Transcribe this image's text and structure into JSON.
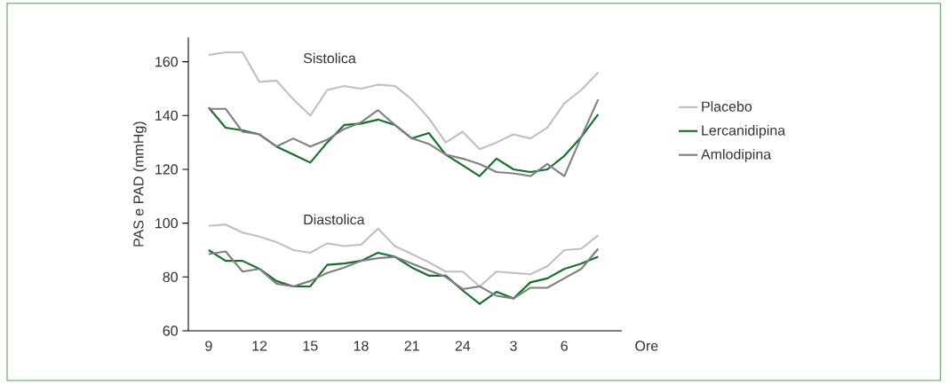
{
  "chart_data": {
    "type": "line",
    "xlabel": "Ore",
    "ylabel": "PAS e PAD (mmHg)",
    "categories": [
      "9",
      null,
      null,
      "12",
      null,
      null,
      "15",
      null,
      null,
      "18",
      null,
      null,
      "21",
      null,
      null,
      "24",
      null,
      null,
      "3",
      null,
      null,
      "6",
      null,
      null
    ],
    "ylim": [
      60,
      169
    ],
    "yticks": [
      60,
      80,
      100,
      120,
      140,
      160
    ],
    "legend": "right",
    "annotations": [
      "Sistolica",
      "Diastolica"
    ],
    "series": [
      {
        "name": "Placebo",
        "color": "#c0c0c0",
        "values": [
          162.5,
          163.5,
          163.5,
          152.5,
          153,
          146,
          140,
          149.5,
          151,
          150,
          151.5,
          151,
          146,
          139,
          130,
          134,
          127.5,
          130,
          133,
          131.5,
          135.5,
          144.5,
          149.5,
          156
        ]
      },
      {
        "name": "Lercanidipina",
        "color": "#1a6b2e",
        "values": [
          143,
          135.5,
          134.5,
          133,
          128.5,
          125.5,
          122.5,
          130,
          136.5,
          137,
          138.5,
          136.5,
          131.5,
          133.5,
          125.5,
          121.5,
          117.5,
          124,
          120,
          119,
          120,
          125,
          132,
          140.5
        ]
      },
      {
        "name": "Amlodipina",
        "color": "#808080",
        "values": [
          142.5,
          142.5,
          134,
          133,
          128.5,
          131.5,
          128.5,
          131,
          135,
          137.5,
          142,
          136.5,
          131.5,
          129.5,
          125.5,
          124,
          122,
          119,
          118.5,
          117.5,
          122,
          117.5,
          132,
          146
        ]
      },
      {
        "color": "#c0c0c0",
        "values": [
          99,
          99.5,
          96.5,
          95,
          93,
          90,
          89,
          92.5,
          91.5,
          92,
          98,
          91.5,
          88.5,
          85.5,
          82,
          82,
          76.5,
          82,
          81.5,
          81,
          84,
          90,
          90.5,
          95.5
        ]
      },
      {
        "color": "#1a6b2e",
        "values": [
          90,
          86,
          86,
          83,
          78.5,
          76.5,
          76.5,
          84.5,
          85,
          86,
          89,
          87.5,
          83.5,
          80.5,
          80.5,
          75,
          70,
          74.5,
          72,
          78,
          79.5,
          83,
          85,
          87.5
        ]
      },
      {
        "color": "#808080",
        "values": [
          88.5,
          89.5,
          82,
          83,
          77.5,
          76.5,
          78.5,
          81.5,
          83.5,
          86,
          87,
          87.5,
          85,
          82.5,
          80,
          75.5,
          76.5,
          73,
          72,
          76,
          76,
          79.5,
          83,
          90.5
        ]
      }
    ]
  }
}
